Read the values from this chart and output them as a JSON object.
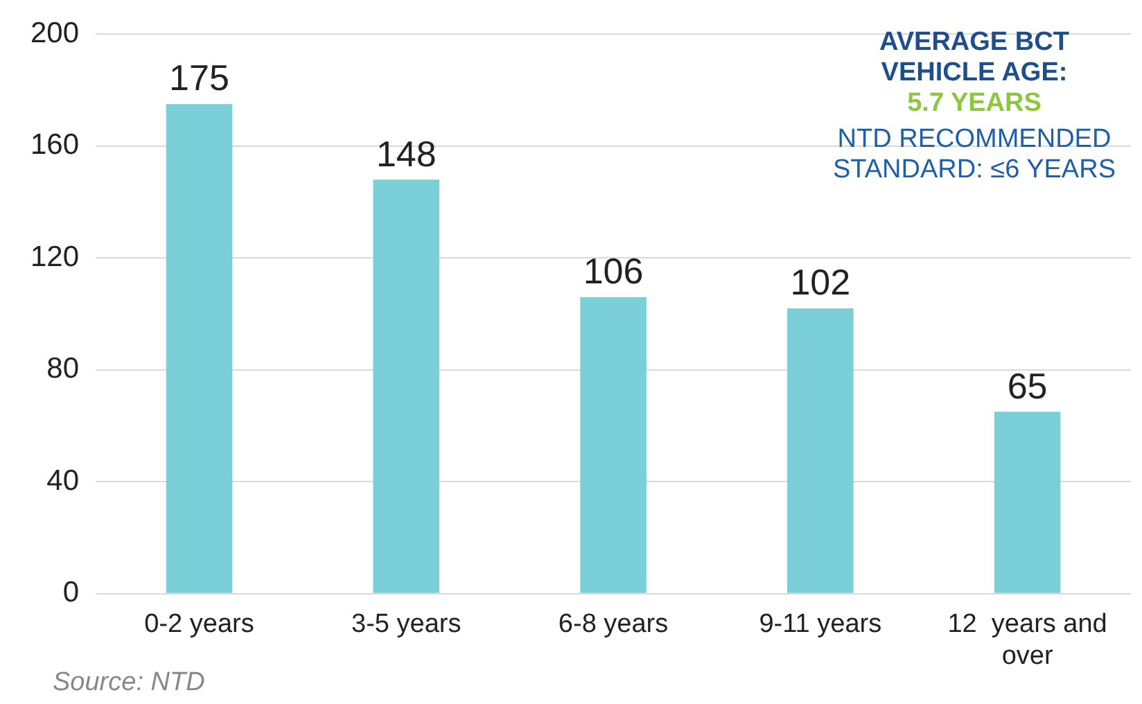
{
  "chart_data": {
    "type": "bar",
    "categories": [
      "0-2 years",
      "3-5 years",
      "6-8 years",
      "9-11 years",
      "12  years and over"
    ],
    "values": [
      175,
      148,
      106,
      102,
      65
    ],
    "color": "#7acfd9",
    "ylim": [
      0,
      200
    ],
    "yticks": [
      0,
      40,
      80,
      120,
      160,
      200
    ],
    "grid": "y",
    "legend": false,
    "data_labels": true,
    "annotations": [
      "AVERAGE BCT VEHICLE AGE:",
      "5.7 YEARS",
      "NTD RECOMMENDED STANDARD: ≤6 YEARS",
      "Source: NTD"
    ]
  }
}
